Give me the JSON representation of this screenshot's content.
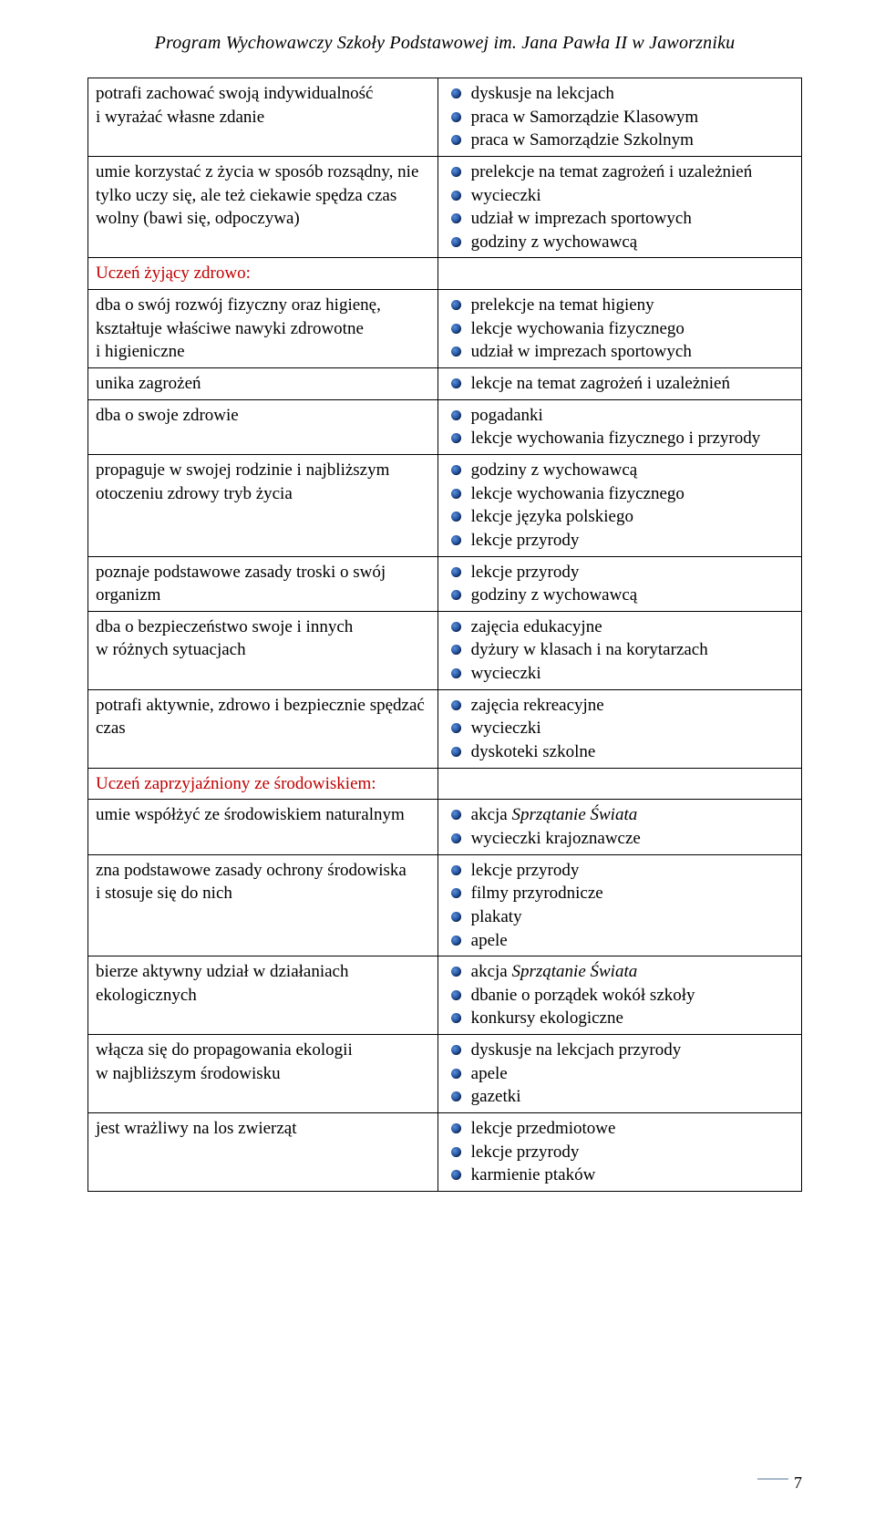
{
  "header": {
    "title": "Program Wychowawczy Szkoły Podstawowej im. Jana Pawła II w Jaworzniku"
  },
  "sections": {
    "zdrowo": {
      "color": "#c00000",
      "label": "Uczeń żyjący zdrowo:"
    },
    "srodowisko": {
      "color": "#c00000",
      "label": "Uczeń zaprzyjaźniony ze środowiskiem:"
    }
  },
  "rows": [
    {
      "left": "potrafi zachować swoją indywidualność i wyrażać własne zdanie",
      "right": [
        "dyskusje na lekcjach",
        "praca w Samorządzie Klasowym",
        "praca w Samorządzie Szkolnym"
      ]
    },
    {
      "left": "umie korzystać z życia w sposób rozsądny, nie tylko uczy się, ale też ciekawie spędza czas wolny (bawi się, odpoczywa)",
      "right": [
        "prelekcje na temat zagrożeń i uzależnień",
        "wycieczki",
        "udział w imprezach sportowych",
        "godziny z wychowawcą"
      ]
    },
    {
      "section": "zdrowo"
    },
    {
      "left": "dba o swój rozwój fizyczny oraz higienę, kształtuje właściwe nawyki zdrowotne i higieniczne",
      "right": [
        "prelekcje na temat higieny",
        "lekcje wychowania fizycznego",
        "udział w imprezach sportowych"
      ]
    },
    {
      "left": "unika zagrożeń",
      "right": [
        "lekcje  na temat zagrożeń i uzależnień"
      ]
    },
    {
      "left": "dba o swoje zdrowie",
      "right": [
        "pogadanki",
        "lekcje wychowania fizycznego i przyrody"
      ]
    },
    {
      "left": "propaguje w swojej rodzinie i najbliższym otoczeniu zdrowy tryb życia",
      "right": [
        "godziny z wychowawcą",
        "lekcje wychowania fizycznego",
        "lekcje języka polskiego",
        "lekcje przyrody"
      ]
    },
    {
      "left": "poznaje podstawowe zasady troski o swój organizm",
      "right": [
        "lekcje przyrody",
        "godziny z wychowawcą"
      ]
    },
    {
      "left": "dba o bezpieczeństwo swoje i innych w różnych sytuacjach",
      "right": [
        "zajęcia edukacyjne",
        "dyżury w klasach i na korytarzach",
        "wycieczki"
      ]
    },
    {
      "left": "potrafi aktywnie, zdrowo i bezpiecznie spędzać czas",
      "right": [
        "zajęcia rekreacyjne",
        "wycieczki",
        "dyskoteki szkolne"
      ]
    },
    {
      "section": "srodowisko"
    },
    {
      "left": "umie współżyć ze środowiskiem naturalnym",
      "right_rich": [
        [
          {
            "t": "akcja "
          },
          {
            "t": "Sprzątanie Świata",
            "i": true
          }
        ],
        [
          {
            "t": "wycieczki krajoznawcze"
          }
        ]
      ]
    },
    {
      "left": "zna podstawowe zasady ochrony środowiska i stosuje się do nich",
      "right": [
        "lekcje przyrody",
        "filmy przyrodnicze",
        "plakaty",
        "apele"
      ]
    },
    {
      "left": "bierze aktywny udział w działaniach ekologicznych",
      "right_rich": [
        [
          {
            "t": "akcja "
          },
          {
            "t": "Sprzątanie Świata",
            "i": true
          }
        ],
        [
          {
            "t": "dbanie o porządek wokół szkoły"
          }
        ],
        [
          {
            "t": "konkursy ekologiczne"
          }
        ]
      ]
    },
    {
      "left": "włącza się do propagowania ekologii w najbliższym środowisku",
      "right": [
        "dyskusje na lekcjach przyrody",
        "apele",
        "gazetki"
      ]
    },
    {
      "left": "jest wrażliwy na los zwierząt",
      "right": [
        "lekcje przedmiotowe",
        "lekcje przyrody",
        "karmienie ptaków"
      ]
    }
  ],
  "footer": {
    "page_number": "7"
  }
}
